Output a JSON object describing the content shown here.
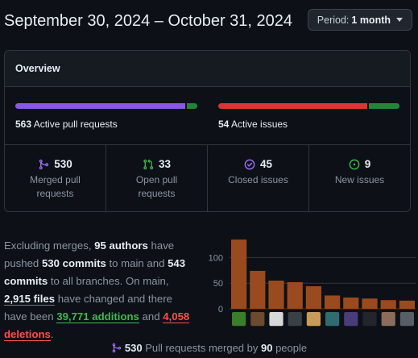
{
  "header": {
    "date_range": "September 30, 2024 – October 31, 2024",
    "period_label": "Period:",
    "period_value": "1 month"
  },
  "overview": {
    "title": "Overview",
    "pull_requests": {
      "count": "563",
      "label": "Active pull requests",
      "merged_fraction": 0.943,
      "open_fraction": 0.057,
      "merged_color": "#8957e5",
      "open_color": "#238636"
    },
    "issues": {
      "count": "54",
      "label": "Active issues",
      "closed_fraction": 0.83,
      "open_fraction": 0.17,
      "closed_color": "#da3633",
      "open_color": "#238636"
    },
    "stats": [
      {
        "icon": "merge-icon",
        "value": "530",
        "label": "Merged pull requests",
        "color": "#a371f7"
      },
      {
        "icon": "pull-request-icon",
        "value": "33",
        "label": "Open pull requests",
        "color": "#3fb950"
      },
      {
        "icon": "issue-closed-icon",
        "value": "45",
        "label": "Closed issues",
        "color": "#a371f7"
      },
      {
        "icon": "issue-opened-icon",
        "value": "9",
        "label": "New issues",
        "color": "#3fb950"
      }
    ]
  },
  "summary": {
    "p1": "Excluding merges, ",
    "authors": "95 authors",
    "p2": " have pushed ",
    "commits_main": "530 commits",
    "p3": " to main and ",
    "commits_all": "543 commits",
    "p4": " to all branches. On main, ",
    "files": "2,915 files",
    "p5": " have changed and there have been ",
    "additions_num": "39,771",
    "additions_word": " additions",
    "p6": " and ",
    "deletions_num": "4,058",
    "deletions_word": " deletions",
    "p7": "."
  },
  "chart_data": {
    "type": "bar",
    "y_ticks": [
      "0",
      "50",
      "100"
    ],
    "ylim": [
      0,
      140
    ],
    "values": [
      135,
      74,
      55,
      52,
      44,
      26,
      22,
      20,
      17,
      16
    ],
    "bar_color": "#9a4a1f"
  },
  "footer": {
    "count": "530",
    "text1": " Pull requests merged by ",
    "people": "90",
    "text2": " people"
  }
}
